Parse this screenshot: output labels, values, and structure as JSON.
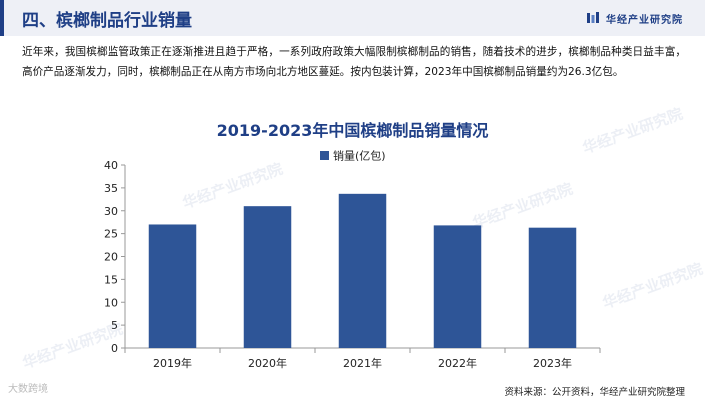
{
  "header": {
    "title": "四、槟榔制品行业销量",
    "brand": "华经产业研究院"
  },
  "intro": "近年来，我国槟榔监管政策正在逐渐推进且趋于严格，一系列政府政策大幅限制槟榔制品的销售，随着技术的进步，槟榔制品种类日益丰富，高价产品逐渐发力，同时，槟榔制品正在从南方市场向北方地区蔓延。按内包装计算，2023年中国槟榔制品销量约为26.3亿包。",
  "chart_data": {
    "type": "bar",
    "title": "2019-2023年中国槟榔制品销量情况",
    "categories": [
      "2019年",
      "2020年",
      "2021年",
      "2022年",
      "2023年"
    ],
    "series": [
      {
        "name": "销量(亿包)",
        "values": [
          27.0,
          31.0,
          33.7,
          26.8,
          26.3
        ]
      }
    ],
    "ylim": [
      0,
      40
    ],
    "yticks": [
      0,
      5,
      10,
      15,
      20,
      25,
      30,
      35,
      40
    ],
    "grid": false,
    "legend": "top-center",
    "colors": {
      "bar": "#2e5597",
      "axis": "#999999",
      "title": "#1f3f86"
    }
  },
  "footer": {
    "watermark": "大数跨境",
    "source": "资料来源：公开资料，华经产业研究院整理"
  }
}
